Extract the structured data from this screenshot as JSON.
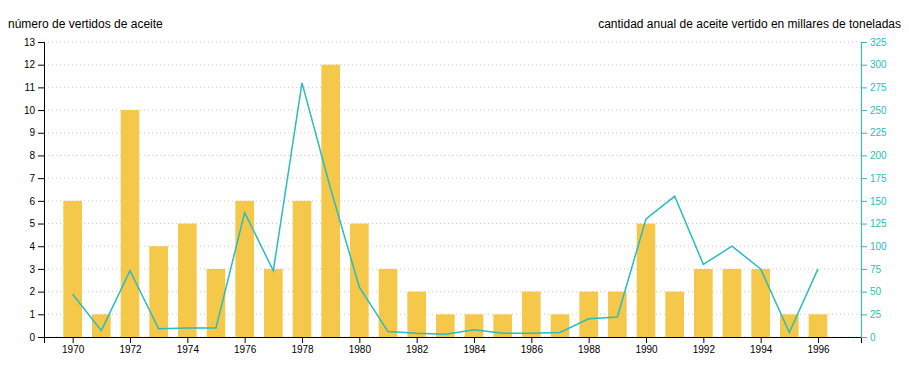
{
  "chart_data": {
    "type": "bar",
    "x": [
      1970,
      1971,
      1972,
      1973,
      1974,
      1975,
      1976,
      1977,
      1978,
      1979,
      1980,
      1981,
      1982,
      1983,
      1984,
      1985,
      1986,
      1987,
      1988,
      1989,
      1990,
      1991,
      1992,
      1993,
      1994,
      1995,
      1996
    ],
    "series": [
      {
        "type": "bar",
        "color": "#F5C84A",
        "values": [
          6,
          1,
          10,
          4,
          5,
          3,
          6,
          3,
          6,
          12,
          5,
          3,
          2,
          1,
          1,
          1,
          2,
          1,
          2,
          2,
          5,
          2,
          3,
          3,
          3,
          1,
          1
        ]
      },
      {
        "type": "line",
        "axis": "y2",
        "color": "#2ABCBE",
        "values": [
          47,
          7,
          73,
          9,
          10,
          10,
          137,
          73,
          280,
          163,
          55,
          6,
          4,
          3,
          8,
          4,
          4,
          5,
          20,
          22,
          130,
          155,
          80,
          100,
          75,
          5,
          75
        ]
      }
    ],
    "ylabel": "número de vertidos de aceite",
    "y2label": "cantidad anual de aceite vertido en millares de toneladas",
    "xlim": [
      1969.0,
      1997.5
    ],
    "xticks": [
      1970,
      1972,
      1974,
      1976,
      1978,
      1980,
      1982,
      1984,
      1986,
      1988,
      1990,
      1992,
      1994,
      1996
    ],
    "ylim": [
      0,
      13
    ],
    "yticks": [
      0,
      1,
      2,
      3,
      4,
      5,
      6,
      7,
      8,
      9,
      10,
      11,
      12,
      13
    ],
    "y2lim": [
      0,
      325
    ],
    "y2ticks": [
      0,
      25,
      50,
      75,
      100,
      125,
      150,
      175,
      200,
      225,
      250,
      275,
      300,
      325
    ],
    "grid": true
  }
}
